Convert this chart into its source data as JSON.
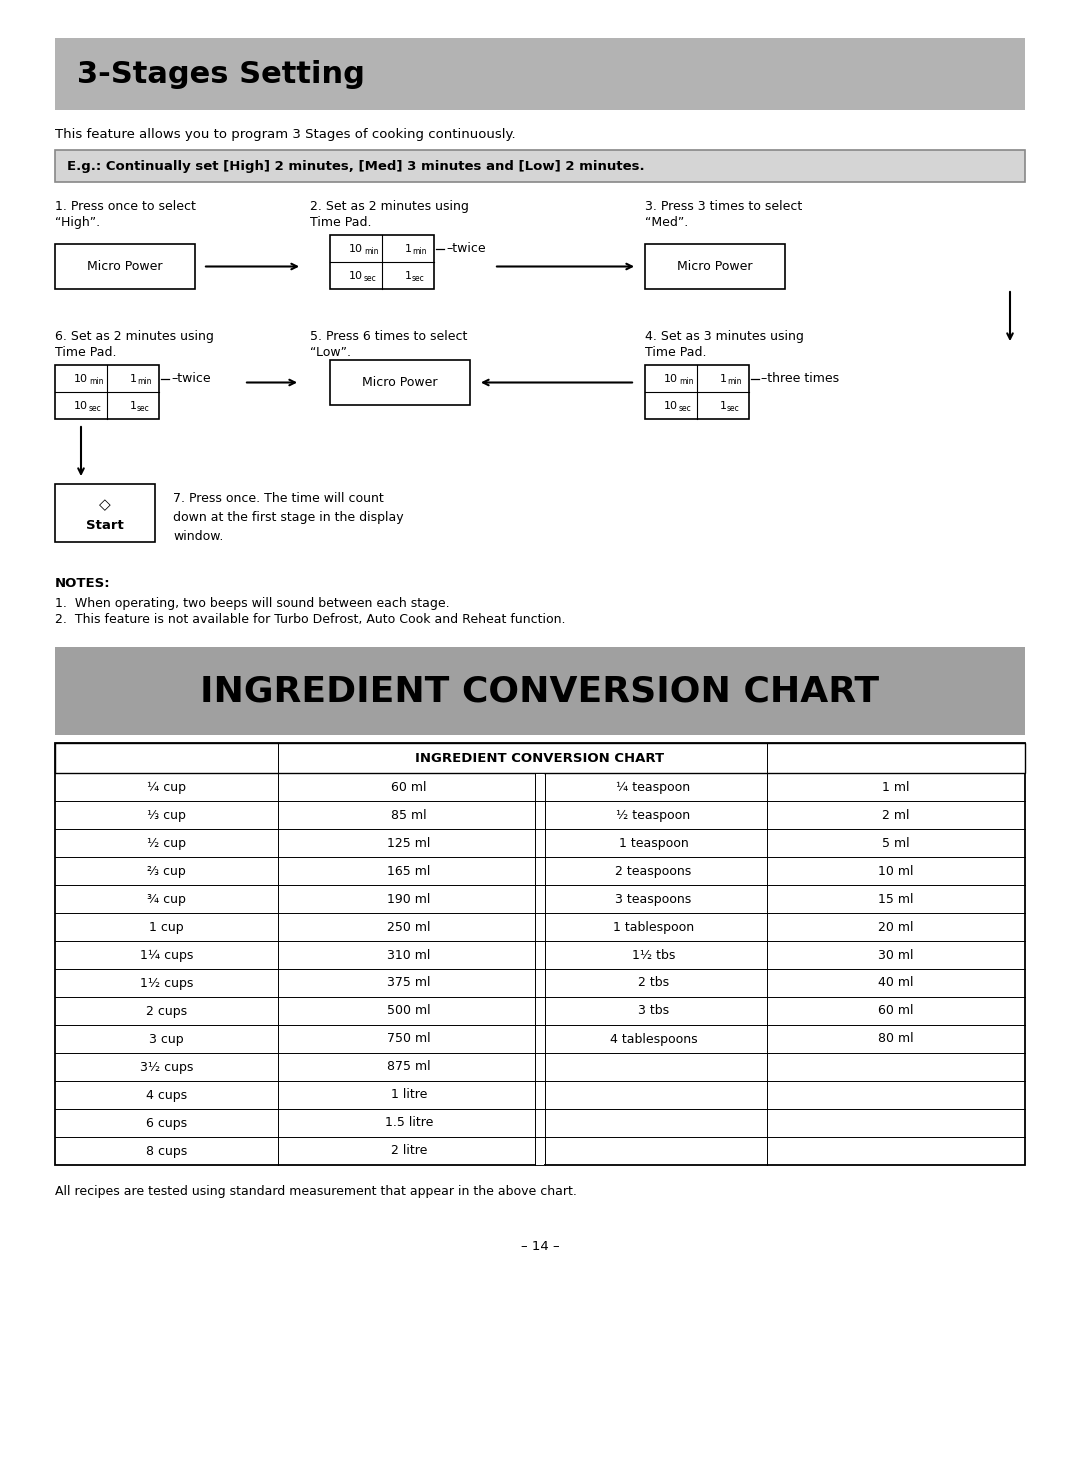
{
  "bg_color": "#ffffff",
  "title1": "3-Stages Setting",
  "title1_bg": "#b3b3b3",
  "intro_text": "This feature allows you to program 3 Stages of cooking continuously.",
  "example_text": "E.g.: Continually set [High] 2 minutes, [Med] 3 minutes and [Low] 2 minutes.",
  "example_bg": "#d0d0d0",
  "step1_line1": "1. Press once to select",
  "step1_line2": "“High”.",
  "step2_line1": "2. Set as 2 minutes using",
  "step2_line2": "Time Pad.",
  "step3_line1": "3. Press 3 times to select",
  "step3_line2": "“Med”.",
  "step4_line1": "4. Set as 3 minutes using",
  "step4_line2": "Time Pad.",
  "step5_line1": "5. Press 6 times to select",
  "step5_line2": "“Low”.",
  "step6_line1": "6. Set as 2 minutes using",
  "step6_line2": "Time Pad.",
  "step7_text": "7. Press once. The time will count\ndown at the first stage in the display\nwindow.",
  "twice_label": "twice",
  "twice_label2": "twice",
  "three_times_label": "three times",
  "notes_title": "NOTES:",
  "note1": "1.  When operating, two beeps will sound between each stage.",
  "note2": "2.  This feature is not available for Turbo Defrost, Auto Cook and Reheat function.",
  "title2": "INGREDIENT CONVERSION CHART",
  "title2_bg": "#a0a0a0",
  "table_header": "INGREDIENT CONVERSION CHART",
  "table_data": [
    [
      "¼ cup",
      "60 ml",
      "¼ teaspoon",
      "1 ml"
    ],
    [
      "⅓ cup",
      "85 ml",
      "½ teaspoon",
      "2 ml"
    ],
    [
      "½ cup",
      "125 ml",
      "1 teaspoon",
      "5 ml"
    ],
    [
      "⅔ cup",
      "165 ml",
      "2 teaspoons",
      "10 ml"
    ],
    [
      "¾ cup",
      "190 ml",
      "3 teaspoons",
      "15 ml"
    ],
    [
      "1 cup",
      "250 ml",
      "1 tablespoon",
      "20 ml"
    ],
    [
      "1¼ cups",
      "310 ml",
      "1½ tbs",
      "30 ml"
    ],
    [
      "1½ cups",
      "375 ml",
      "2 tbs",
      "40 ml"
    ],
    [
      "2 cups",
      "500 ml",
      "3 tbs",
      "60 ml"
    ],
    [
      "3 cup",
      "750 ml",
      "4 tablespoons",
      "80 ml"
    ],
    [
      "3½ cups",
      "875 ml",
      "",
      ""
    ],
    [
      "4 cups",
      "1 litre",
      "",
      ""
    ],
    [
      "6 cups",
      "1.5 litre",
      "",
      ""
    ],
    [
      "8 cups",
      "2 litre",
      "",
      ""
    ]
  ],
  "footer_note": "All recipes are tested using standard measurement that appear in the above chart.",
  "page_number": "– 14 –"
}
